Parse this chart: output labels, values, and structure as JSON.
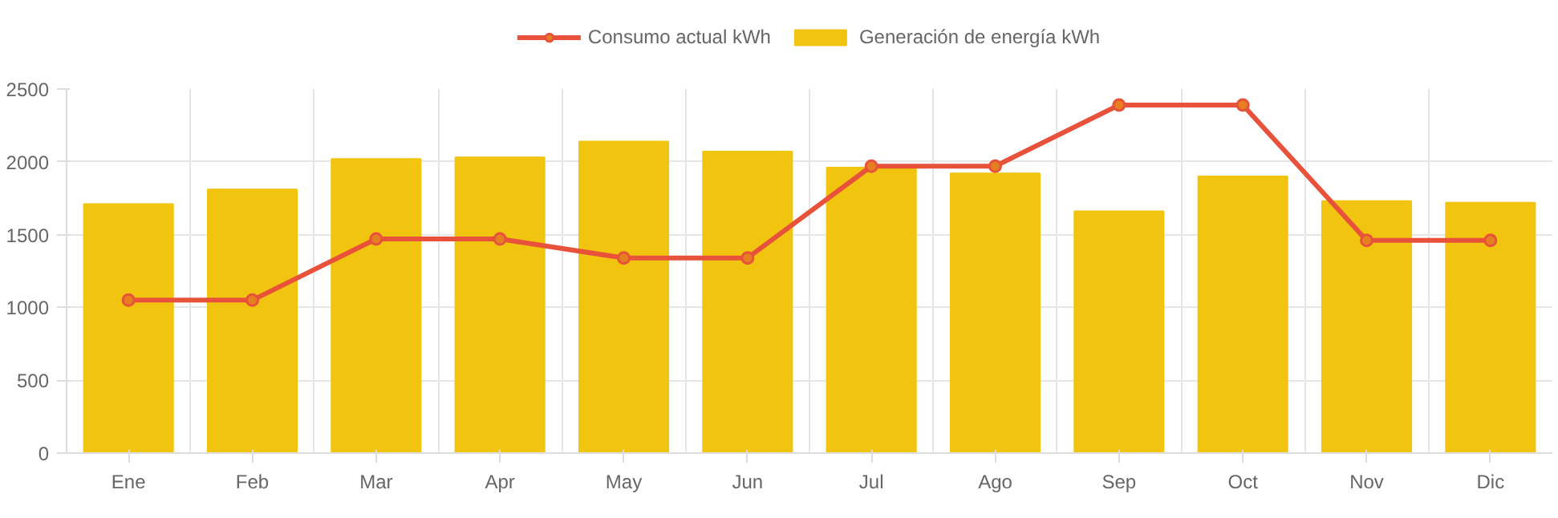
{
  "chart_data": {
    "type": "bar",
    "categories": [
      "Ene",
      "Feb",
      "Mar",
      "Apr",
      "May",
      "Jun",
      "Jul",
      "Ago",
      "Sep",
      "Oct",
      "Nov",
      "Dic"
    ],
    "series": [
      {
        "name": "Consumo actual kWh",
        "type": "line",
        "color": "#e8523a",
        "values": [
          1050,
          1050,
          1470,
          1470,
          1340,
          1340,
          1970,
          1970,
          2390,
          2390,
          1460,
          1460
        ]
      },
      {
        "name": "Generación de energía kWh",
        "color": "#f1c40f",
        "values": [
          1710,
          1810,
          2020,
          2030,
          2140,
          2070,
          1960,
          1920,
          1660,
          1900,
          1730,
          1720
        ]
      }
    ],
    "ylim": [
      0,
      2500
    ],
    "yticks": [
      0,
      500,
      1000,
      1500,
      2000,
      2500
    ],
    "grid": true,
    "legend": "top",
    "marker": "circle"
  }
}
